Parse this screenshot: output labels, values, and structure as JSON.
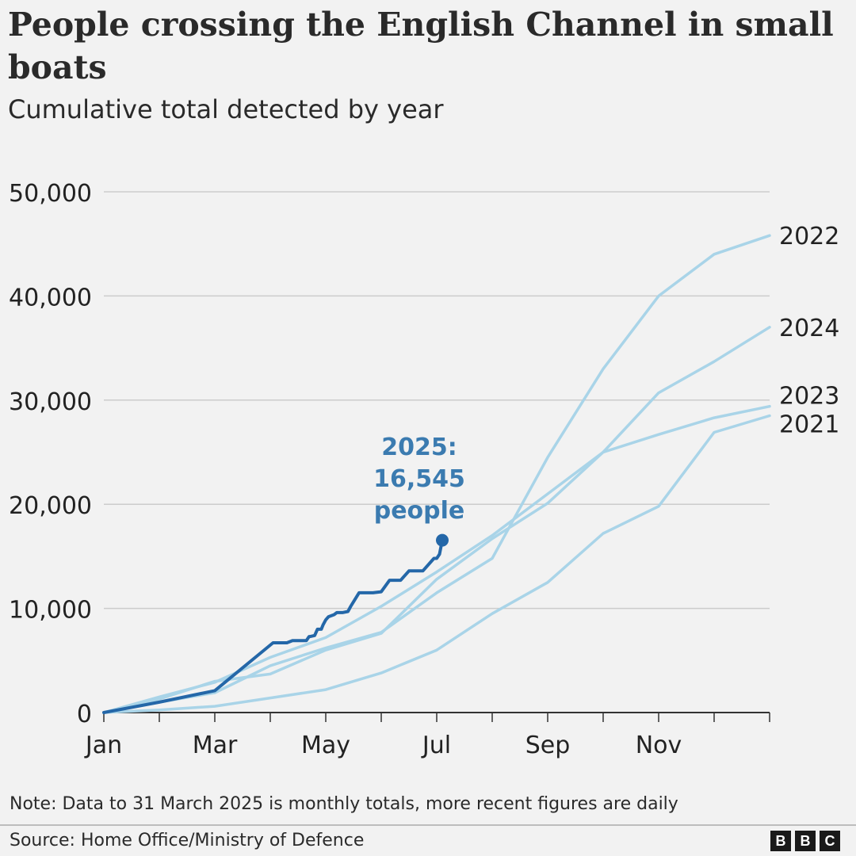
{
  "title": "People crossing the English Channel in small boats",
  "subtitle": "Cumulative total detected by year",
  "note": "Note: Data to 31 March 2025 is monthly totals, more recent figures are daily",
  "source": "Source: Home Office/Ministry of Defence",
  "logo": {
    "letters": [
      "B",
      "B",
      "C"
    ]
  },
  "colors": {
    "background": "#f2f2f2",
    "past_years": "#a9d4e8",
    "current_year": "#2467a8",
    "annotation": "#3b7bb0",
    "grid": "#cccccc",
    "axis": "#333333"
  },
  "chart_data": {
    "type": "line",
    "title": "People crossing the English Channel in small boats",
    "subtitle": "Cumulative total detected by year",
    "xlabel": "",
    "ylabel": "",
    "x_ticks": [
      "Jan",
      "Mar",
      "May",
      "Jul",
      "Sep",
      "Nov"
    ],
    "x_unit": "month (0 = 1 Jan, 12 = 31 Dec)",
    "xlim": [
      0,
      12
    ],
    "ylim": [
      0,
      50000
    ],
    "y_ticks": [
      0,
      10000,
      20000,
      30000,
      40000,
      50000
    ],
    "y_tick_labels": [
      "0",
      "10,000",
      "20,000",
      "30,000",
      "40,000",
      "50,000"
    ],
    "grid": true,
    "legend": "none (series labelled at right end of lines)",
    "series": [
      {
        "name": "2021",
        "highlight": false,
        "x": [
          0,
          1,
          2,
          3,
          4,
          5,
          6,
          7,
          8,
          9,
          10,
          11,
          12
        ],
        "y": [
          0,
          250,
          600,
          1400,
          2200,
          3800,
          6000,
          9500,
          12500,
          17200,
          19800,
          26900,
          28500
        ]
      },
      {
        "name": "2022",
        "highlight": false,
        "x": [
          0,
          1,
          2,
          3,
          4,
          5,
          6,
          7,
          8,
          9,
          10,
          11,
          12
        ],
        "y": [
          0,
          1000,
          1900,
          4500,
          6200,
          7700,
          11500,
          14800,
          24500,
          33000,
          40000,
          44000,
          45800
        ]
      },
      {
        "name": "2023",
        "highlight": false,
        "x": [
          0,
          1,
          2,
          3,
          4,
          5,
          6,
          7,
          8,
          9,
          10,
          11,
          12
        ],
        "y": [
          0,
          1300,
          3000,
          3700,
          6000,
          7600,
          12800,
          16700,
          20100,
          25000,
          26700,
          28300,
          29400
        ]
      },
      {
        "name": "2024",
        "highlight": false,
        "x": [
          0,
          1,
          2,
          3,
          4,
          5,
          6,
          7,
          8,
          9,
          10,
          11,
          12
        ],
        "y": [
          0,
          1500,
          2900,
          5300,
          7200,
          10200,
          13500,
          17000,
          21000,
          25000,
          30700,
          33700,
          37000
        ]
      },
      {
        "name": "2025",
        "highlight": true,
        "x": [
          0,
          1,
          2,
          3.05,
          3.3,
          3.4,
          3.45,
          3.65,
          3.7,
          3.72,
          3.8,
          3.85,
          3.92,
          3.95,
          4.0,
          4.05,
          4.15,
          4.2,
          4.3,
          4.4,
          4.45,
          4.6,
          4.8,
          4.85,
          5.0,
          5.15,
          5.2,
          5.35,
          5.5,
          5.55,
          5.75,
          5.95,
          6.0,
          6.05,
          6.1
        ],
        "y": [
          0,
          1000,
          2100,
          6700,
          6700,
          6900,
          6900,
          6900,
          7300,
          7300,
          7400,
          8000,
          8000,
          8400,
          8900,
          9200,
          9400,
          9600,
          9600,
          9700,
          10200,
          11500,
          11500,
          11500,
          11600,
          12700,
          12700,
          12700,
          13600,
          13600,
          13600,
          14800,
          14800,
          15200,
          16545
        ]
      }
    ],
    "end_labels": [
      "2022",
      "2024",
      "2023",
      "2021"
    ],
    "annotation": {
      "lines": [
        "2025:",
        "16,545",
        "people"
      ],
      "value": 16545
    }
  }
}
